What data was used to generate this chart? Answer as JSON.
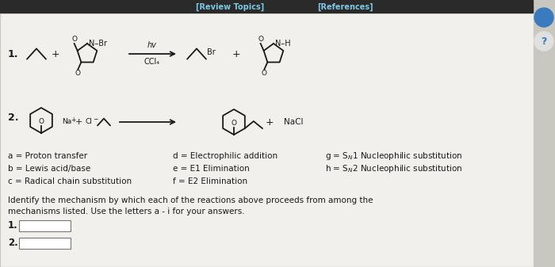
{
  "bg_color": "#c8c8c0",
  "panel_color": "#f2f0ec",
  "header_color": "#2a2a2a",
  "header_text_color": "#7ec8e3",
  "header_links": [
    "[Review Topics]",
    "[References]"
  ],
  "reaction1_label": "1.",
  "reaction2_label": "2.",
  "reaction1_conditions_top": "hv",
  "reaction1_conditions_bot": "CCl₄",
  "legend_a": "a = Proton transfer",
  "legend_b": "b = Lewis acid/base",
  "legend_c": "c = Radical chain substitution",
  "legend_d": "d = Electrophilic addition",
  "legend_e": "e = E1 Elimination",
  "legend_f": "f = E2 Elimination",
  "legend_g": "g = S",
  "legend_g2": "N",
  "legend_g3": "1 Nucleophilic substitution",
  "legend_h": "h = S",
  "legend_h2": "N",
  "legend_h3": "2 Nucleophilic substitution",
  "question_text1": "Identify the mechanism by which each of the reactions above proceeds from among the",
  "question_text2": "mechanisms listed. Use the letters a - i for your answers.",
  "text_color": "#1a1a1a",
  "box_color": "#ffffff",
  "circle_color1": "#3a7abf",
  "circle_color2": "#e0e0e0"
}
